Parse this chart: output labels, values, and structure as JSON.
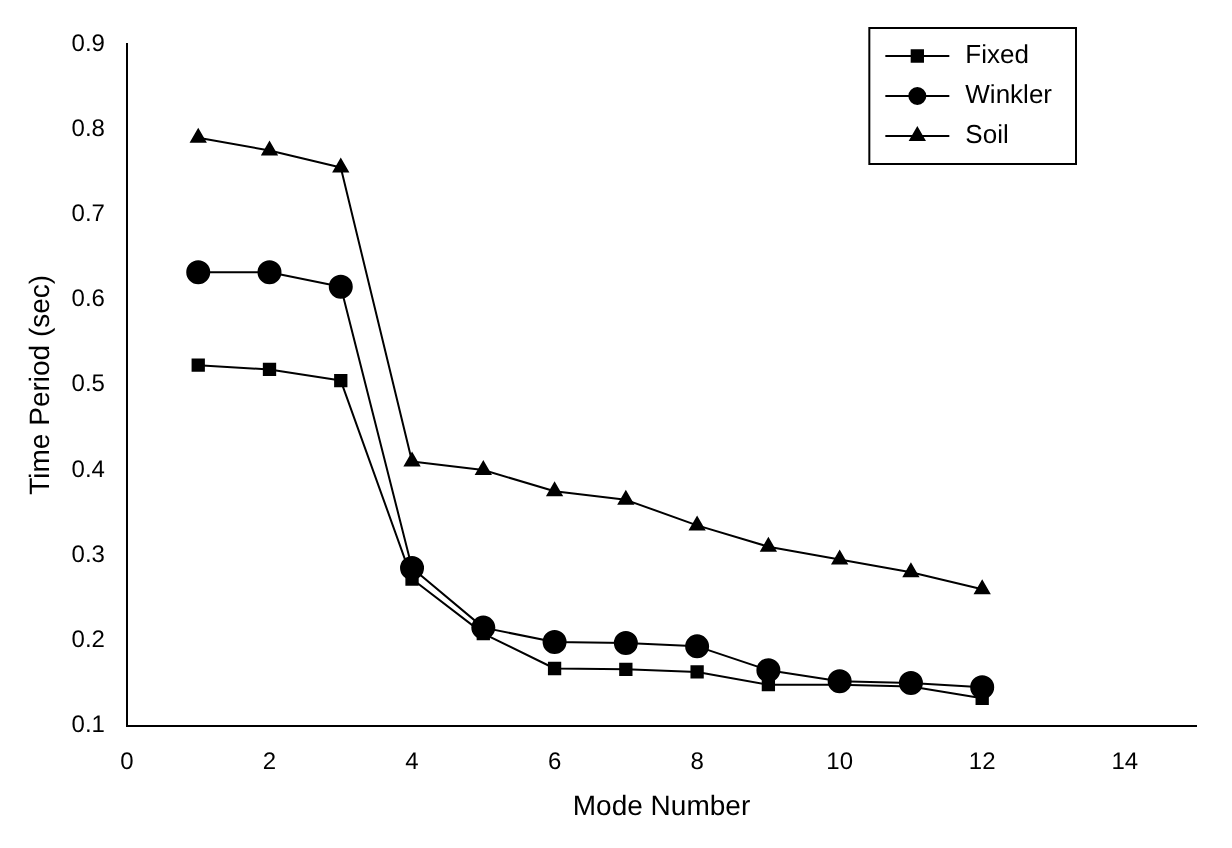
{
  "chart_data": {
    "type": "line",
    "xlabel": "Mode Number",
    "ylabel": "Time Period (sec)",
    "x": [
      1,
      2,
      3,
      4,
      5,
      6,
      7,
      8,
      9,
      10,
      11,
      12
    ],
    "series": [
      {
        "name": "Fixed",
        "color": "#000000",
        "marker": "square",
        "values": [
          0.523,
          0.518,
          0.505,
          0.272,
          0.208,
          0.167,
          0.166,
          0.163,
          0.148,
          0.148,
          0.146,
          0.132
        ]
      },
      {
        "name": "Winkler",
        "color": "#000000",
        "marker": "circle",
        "values": [
          0.632,
          0.632,
          0.615,
          0.285,
          0.215,
          0.198,
          0.197,
          0.193,
          0.165,
          0.152,
          0.15,
          0.145
        ]
      },
      {
        "name": "Soil",
        "color": "#000000",
        "marker": "triangle",
        "values": [
          0.79,
          0.775,
          0.755,
          0.41,
          0.4,
          0.375,
          0.365,
          0.335,
          0.31,
          0.295,
          0.28,
          0.26
        ]
      }
    ],
    "xlim": [
      0,
      15
    ],
    "xticks": [
      0,
      2,
      4,
      6,
      8,
      10,
      12,
      14
    ],
    "ylim": [
      0.1,
      0.9
    ],
    "yticks": [
      0.1,
      0.2,
      0.3,
      0.4,
      0.5,
      0.6,
      0.7,
      0.8,
      0.9
    ],
    "grid": false,
    "legend": "top right",
    "line_style": "solid"
  }
}
